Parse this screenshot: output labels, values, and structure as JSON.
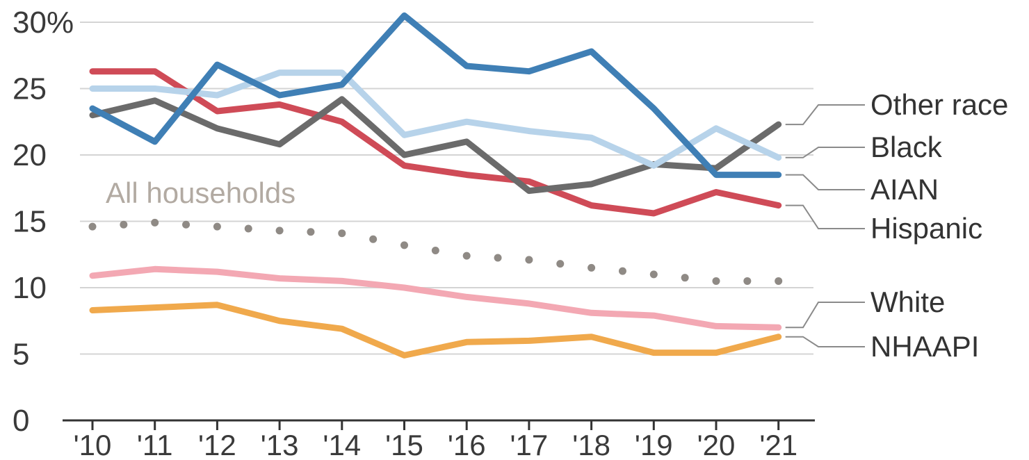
{
  "chart_data": {
    "type": "line",
    "title": "",
    "xlabel": "",
    "ylabel": "",
    "categories": [
      "'10",
      "'11",
      "'12",
      "'13",
      "'14",
      "'15",
      "'16",
      "'17",
      "'18",
      "'19",
      "'20",
      "'21"
    ],
    "ylim": [
      0,
      30
    ],
    "yticks": [
      {
        "value": 0,
        "label": "0"
      },
      {
        "value": 5,
        "label": "5"
      },
      {
        "value": 10,
        "label": "10"
      },
      {
        "value": 15,
        "label": "15"
      },
      {
        "value": 20,
        "label": "20"
      },
      {
        "value": 25,
        "label": "25"
      },
      {
        "value": 30,
        "label": "30%"
      }
    ],
    "grid": true,
    "legend_placement": "right, direct labels",
    "series": [
      {
        "name": "AIAN",
        "color": "#3f7fb5",
        "values": [
          23.5,
          21.0,
          26.8,
          24.5,
          25.3,
          30.5,
          26.7,
          26.3,
          27.8,
          23.5,
          18.5,
          18.5
        ]
      },
      {
        "name": "Black",
        "color": "#b7d3ea",
        "values": [
          25.0,
          25.0,
          24.5,
          26.2,
          26.2,
          21.5,
          22.5,
          21.8,
          21.3,
          19.2,
          22.0,
          19.8
        ]
      },
      {
        "name": "Other race",
        "color": "#6b6b6b",
        "values": [
          23.0,
          24.1,
          22.0,
          20.8,
          24.2,
          20.0,
          21.0,
          17.3,
          17.8,
          19.3,
          19.0,
          22.3
        ]
      },
      {
        "name": "Hispanic",
        "color": "#cf4b57",
        "values": [
          26.3,
          26.3,
          23.3,
          23.8,
          22.5,
          19.2,
          18.5,
          18.0,
          16.2,
          15.6,
          17.2,
          16.2
        ]
      },
      {
        "name": "White",
        "color": "#f3a8b3",
        "values": [
          10.9,
          11.4,
          11.2,
          10.7,
          10.5,
          10.0,
          9.3,
          8.8,
          8.1,
          7.9,
          7.1,
          7.0
        ]
      },
      {
        "name": "NHAAPI",
        "color": "#f0a94c",
        "values": [
          8.3,
          8.5,
          8.7,
          7.5,
          6.9,
          4.9,
          5.9,
          6.0,
          6.3,
          5.1,
          5.1,
          6.3
        ]
      }
    ],
    "annotations": [
      {
        "label": "All households",
        "color": "#8f8a85",
        "style": "dotted",
        "values": [
          14.6,
          14.9,
          14.6,
          14.3,
          14.1,
          13.2,
          12.4,
          12.1,
          11.5,
          11.0,
          10.5,
          10.5
        ]
      }
    ],
    "label_order": [
      "Other race",
      "Black",
      "AIAN",
      "Hispanic",
      "White",
      "NHAAPI"
    ]
  }
}
